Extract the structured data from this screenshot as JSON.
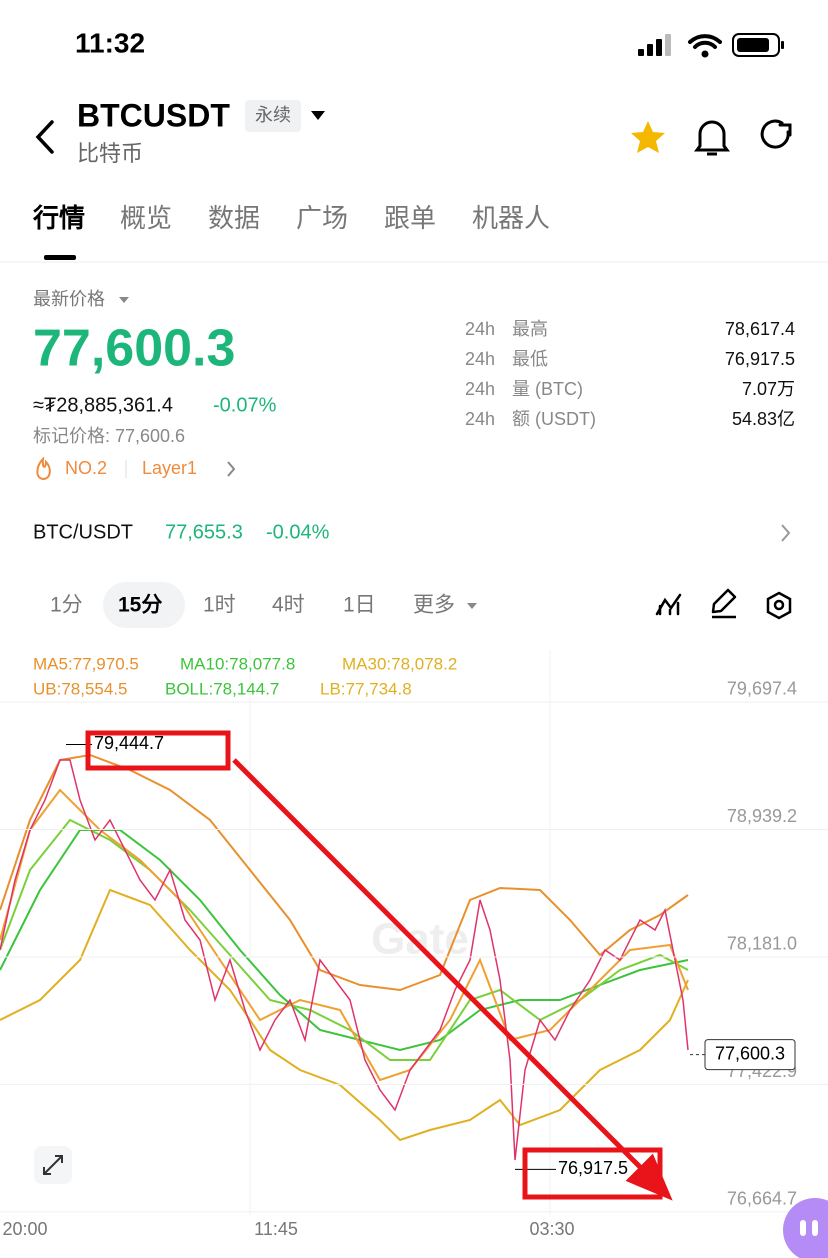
{
  "status_bar": {
    "time": "11:32"
  },
  "header": {
    "symbol": "BTCUSDT",
    "badge": "永续",
    "subtitle": "比特币"
  },
  "tabs": [
    "行情",
    "概览",
    "数据",
    "广场",
    "跟单",
    "机器人"
  ],
  "price": {
    "label": "最新价格",
    "last": "77,600.3",
    "approx": "≈₮28,885,361.4",
    "change": "-0.07%",
    "mark": "标记价格: 77,600.6",
    "rank": "NO.2",
    "tag": "Layer1"
  },
  "stats": [
    {
      "period": "24h",
      "label": "最高",
      "value": "78,617.4"
    },
    {
      "period": "24h",
      "label": "最低",
      "value": "76,917.5"
    },
    {
      "period": "24h",
      "label": "量 (BTC)",
      "value": "7.07万"
    },
    {
      "period": "24h",
      "label": "额 (USDT)",
      "value": "54.83亿"
    }
  ],
  "spot": {
    "pair": "BTC/USDT",
    "price": "77,655.3",
    "change": "-0.04%"
  },
  "intervals": [
    "1分",
    "15分",
    "1时",
    "4时",
    "1日",
    "更多"
  ],
  "indicators": [
    [
      {
        "text": "MA5:77,970.5",
        "color": "#e8912c"
      },
      {
        "text": "MA10:78,077.8",
        "color": "#3cc43c"
      },
      {
        "text": "MA30:78,078.2",
        "color": "#e0b020"
      }
    ],
    [
      {
        "text": "UB:78,554.5",
        "color": "#e8912c"
      },
      {
        "text": "BOLL:78,144.7",
        "color": "#3cc43c"
      },
      {
        "text": "LB:77,734.8",
        "color": "#e0b020"
      }
    ]
  ],
  "chart": {
    "ylim": [
      76575,
      79935
    ],
    "yticks": [
      {
        "value": 79697.4,
        "label": "79,697.4"
      },
      {
        "value": 78939.2,
        "label": "78,939.2"
      },
      {
        "value": 78181.0,
        "label": "78,181.0"
      },
      {
        "value": 77422.9,
        "label": "77,422.9"
      },
      {
        "value": 76664.7,
        "label": "76,664.7"
      }
    ],
    "xticks": [
      "20:00",
      "11:45",
      "03:30"
    ],
    "high": {
      "value": 79444.7,
      "label": "79,444.7"
    },
    "low": {
      "value": 76917.5,
      "label": "76,917.5"
    },
    "last": {
      "value": 77600.3,
      "label": "77,600.3"
    }
  }
}
